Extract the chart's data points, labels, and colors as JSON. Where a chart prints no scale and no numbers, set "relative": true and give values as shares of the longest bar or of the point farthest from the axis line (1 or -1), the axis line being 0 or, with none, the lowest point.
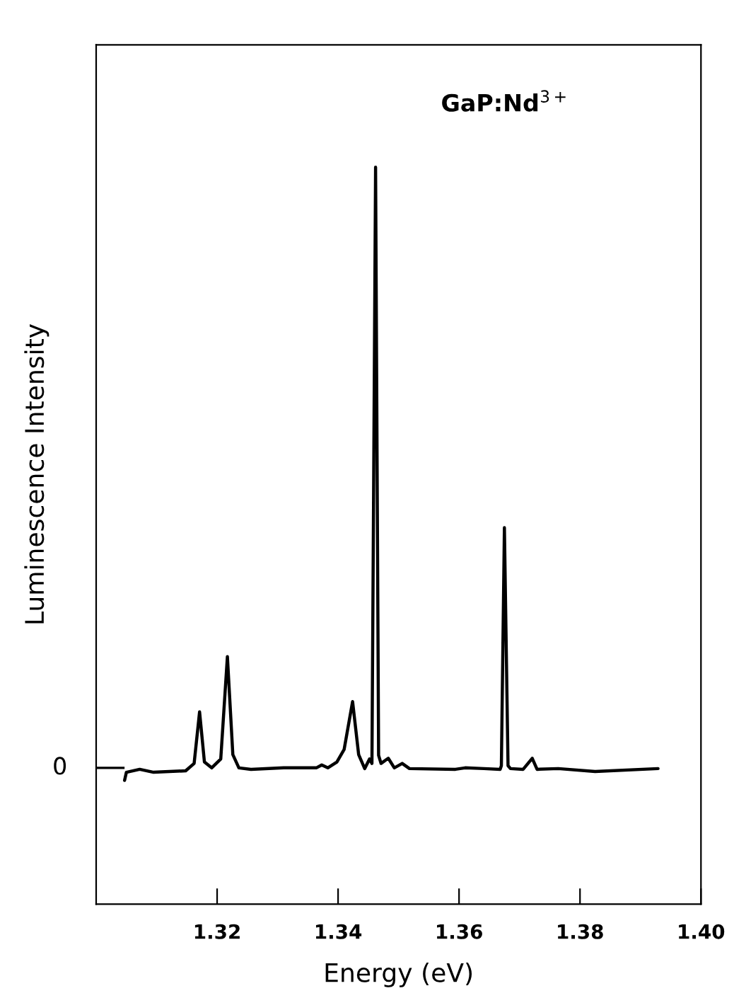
{
  "chart_data": {
    "type": "line",
    "xlabel": "Energy (eV)",
    "ylabel": "Luminescence Intensity",
    "relative": true,
    "xlim": [
      1.3,
      1.4
    ],
    "xticks": [
      1.32,
      1.34,
      1.36,
      1.38,
      {
        "value": 1.4,
        "label": "1.40"
      }
    ],
    "annotations": [
      "GaP:Nd$^{3+}$",
      "0"
    ],
    "series": [
      {
        "color": "#000000",
        "x": [
          1.3047,
          1.305,
          1.3072,
          1.3095,
          1.3148,
          1.3162,
          1.3171,
          1.3179,
          1.3191,
          1.3206,
          1.3217,
          1.3226,
          1.3236,
          1.3256,
          1.331,
          1.3364,
          1.3373,
          1.3383,
          1.3398,
          1.341,
          1.3424,
          1.3434,
          1.3444,
          1.3452,
          1.3456,
          1.3462,
          1.3467,
          1.3471,
          1.3483,
          1.3493,
          1.3506,
          1.3518,
          1.3594,
          1.361,
          1.3641,
          1.3668,
          1.367,
          1.3675,
          1.3681,
          1.3685,
          1.3706,
          1.3721,
          1.3729,
          1.3764,
          1.3825,
          1.3929
        ],
        "values": [
          0.168,
          0.179,
          0.183,
          0.179,
          0.181,
          0.191,
          0.261,
          0.193,
          0.185,
          0.197,
          0.336,
          0.203,
          0.185,
          0.183,
          0.185,
          0.185,
          0.189,
          0.185,
          0.193,
          0.21,
          0.275,
          0.203,
          0.184,
          0.197,
          0.191,
          1.0,
          0.202,
          0.191,
          0.198,
          0.185,
          0.191,
          0.184,
          0.183,
          0.185,
          0.184,
          0.183,
          0.188,
          0.511,
          0.188,
          0.184,
          0.183,
          0.198,
          0.183,
          0.184,
          0.18,
          0.184
        ]
      }
    ]
  }
}
